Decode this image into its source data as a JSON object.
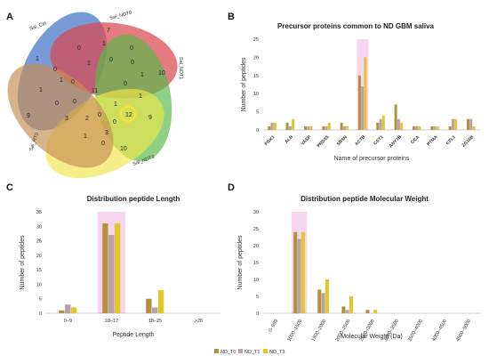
{
  "panels": {
    "a": "A",
    "b": "B",
    "c": "C",
    "d": "D"
  },
  "colors": {
    "nd_t0": "#b3913c",
    "nd_t1": "#b9a0a2",
    "nd_t3": "#e3c52c",
    "pink_band": "#f6d6ee",
    "venn_ctrl": "#4a79c9",
    "venn_ndt0": "#d9484f",
    "venn_ndt1": "#59b94a",
    "venn_ndt3": "#f1e64a",
    "venn_rt0": "#c78f56"
  },
  "venn": {
    "sets": [
      "Sal_Ctrl",
      "Sal_NDT0",
      "Sal_NDT1",
      "Sal_NDT3",
      "Sal_RT0"
    ],
    "regions": [
      "7",
      "1",
      "0",
      "10",
      "1",
      "0",
      "0",
      "1",
      "0",
      "0",
      "1",
      "1",
      "0",
      "1",
      "11",
      "0",
      "1",
      "0",
      "0",
      "1",
      "12",
      "0",
      "9",
      "3",
      "2",
      "0",
      "3",
      "9",
      "1",
      "0",
      "10"
    ]
  },
  "legend": {
    "items": [
      "ND_T0",
      "ND_T1",
      "ND_T3"
    ]
  },
  "chart_data": [
    {
      "panel": "B",
      "type": "bar",
      "title": "Precursor proteins common to ND GBM saliva",
      "xlabel": "Name of precursor proteins",
      "ylabel": "Number of peptides",
      "ylim": [
        0,
        25
      ],
      "yticks": [
        "0",
        "5",
        "10",
        "15",
        "20",
        "25"
      ],
      "categories": [
        "PGK1",
        "ALB",
        "VASP",
        "PRDX5",
        "SBSN",
        "ACTB",
        "CST1",
        "ANY1B",
        "GCA",
        "PTMA",
        "CFL1",
        "ZG16B"
      ],
      "series": [
        {
          "name": "ND_T0",
          "values": [
            1,
            2,
            1,
            1,
            2,
            15,
            2,
            7,
            1,
            1,
            1,
            3
          ]
        },
        {
          "name": "ND_T1",
          "values": [
            2,
            1,
            1,
            1,
            1,
            12,
            3,
            3,
            1,
            1,
            3,
            3
          ]
        },
        {
          "name": "ND_T3",
          "values": [
            2,
            3,
            1,
            2,
            1,
            20,
            4,
            2,
            1,
            1,
            3,
            1
          ]
        }
      ]
    },
    {
      "panel": "C",
      "type": "bar",
      "title": "Distribution peptide Length",
      "xlabel": "Peptide Length",
      "ylabel": "Number of peptides",
      "ylim": [
        0,
        35
      ],
      "yticks": [
        "0",
        "5",
        "10",
        "15",
        "20",
        "25",
        "30",
        "35"
      ],
      "categories": [
        "0–9",
        "10–17",
        "18–25",
        ">26"
      ],
      "series": [
        {
          "name": "ND_T0",
          "values": [
            1,
            31,
            5,
            0
          ]
        },
        {
          "name": "ND_T1",
          "values": [
            3,
            27,
            2,
            0
          ]
        },
        {
          "name": "ND_T3",
          "values": [
            2,
            31,
            8,
            0
          ]
        }
      ]
    },
    {
      "panel": "D",
      "type": "bar",
      "title": "Distribution peptide Molecular Weight",
      "xlabel": "Molecular Weight (Da)",
      "ylabel": "Number of peptides",
      "ylim": [
        0,
        30
      ],
      "yticks": [
        "0",
        "5",
        "10",
        "15",
        "20",
        "25",
        "30"
      ],
      "categories": [
        "0–999",
        "1000–1500",
        "1500–2000",
        "2000–2500",
        "2500–3000",
        "3000–3500",
        "3500–4000",
        "4000–4500",
        "4500–5000"
      ],
      "series": [
        {
          "name": "ND_T0",
          "values": [
            0,
            24,
            7,
            2,
            1,
            0,
            0,
            0,
            0
          ]
        },
        {
          "name": "ND_T1",
          "values": [
            0,
            22,
            6,
            1,
            0,
            0,
            0,
            0,
            0
          ]
        },
        {
          "name": "ND_T3",
          "values": [
            0,
            24,
            10,
            5,
            1,
            0,
            0,
            0,
            0
          ]
        }
      ]
    }
  ]
}
